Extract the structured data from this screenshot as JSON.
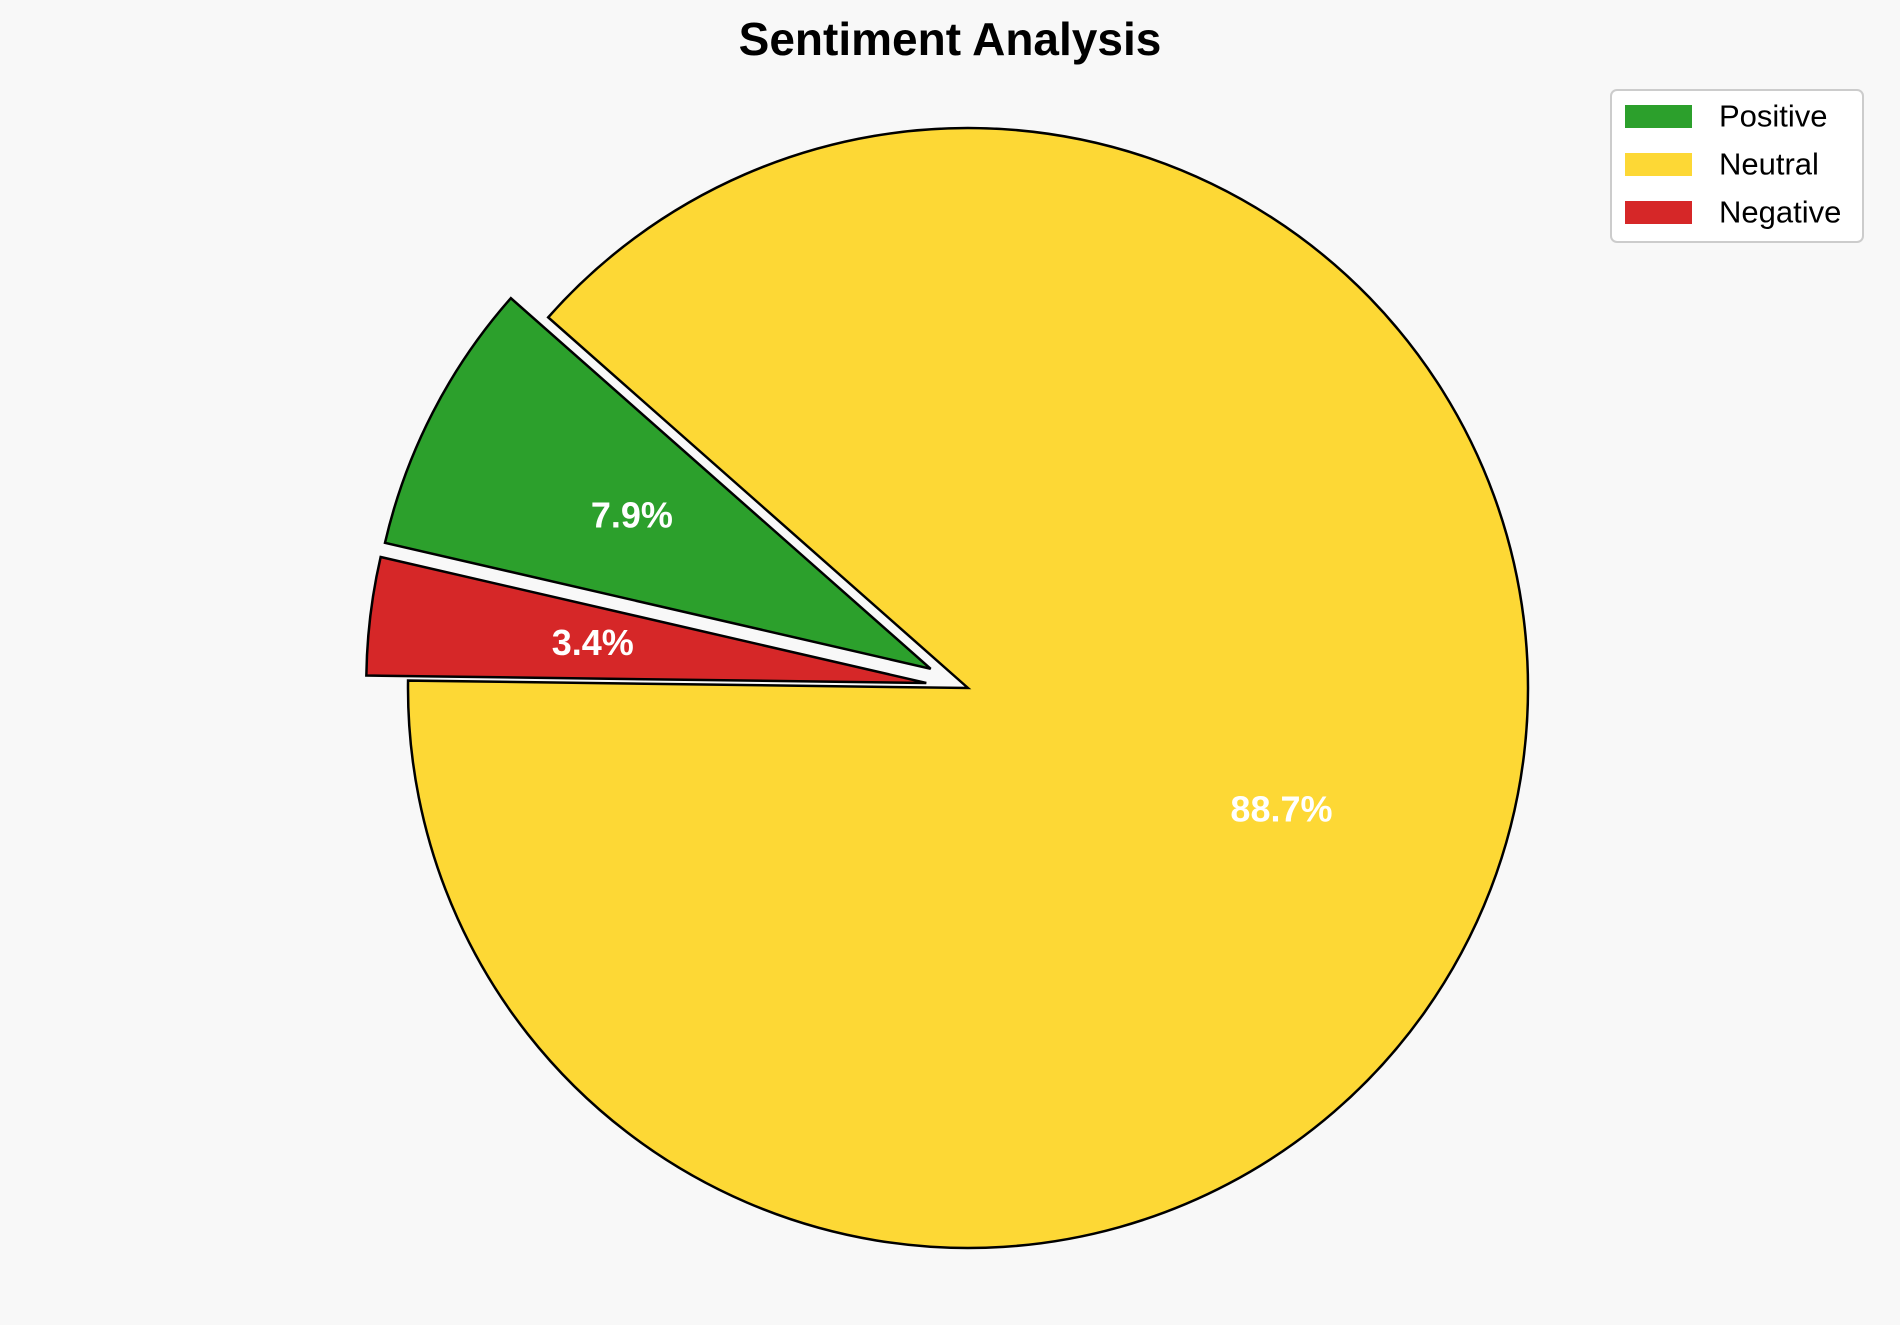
{
  "chart_data": {
    "type": "pie",
    "title": "Sentiment Analysis",
    "categories": [
      "Positive",
      "Neutral",
      "Negative"
    ],
    "values": [
      7.9,
      88.7,
      3.4
    ],
    "value_labels": [
      "7.9%",
      "88.7%",
      "3.4%"
    ],
    "colors": [
      "#2ca02c",
      "#fdd835",
      "#d62728"
    ],
    "exploded": [
      true,
      false,
      true
    ],
    "start_angle_deg": 167,
    "direction": "clockwise",
    "legend_position": "top-right"
  }
}
